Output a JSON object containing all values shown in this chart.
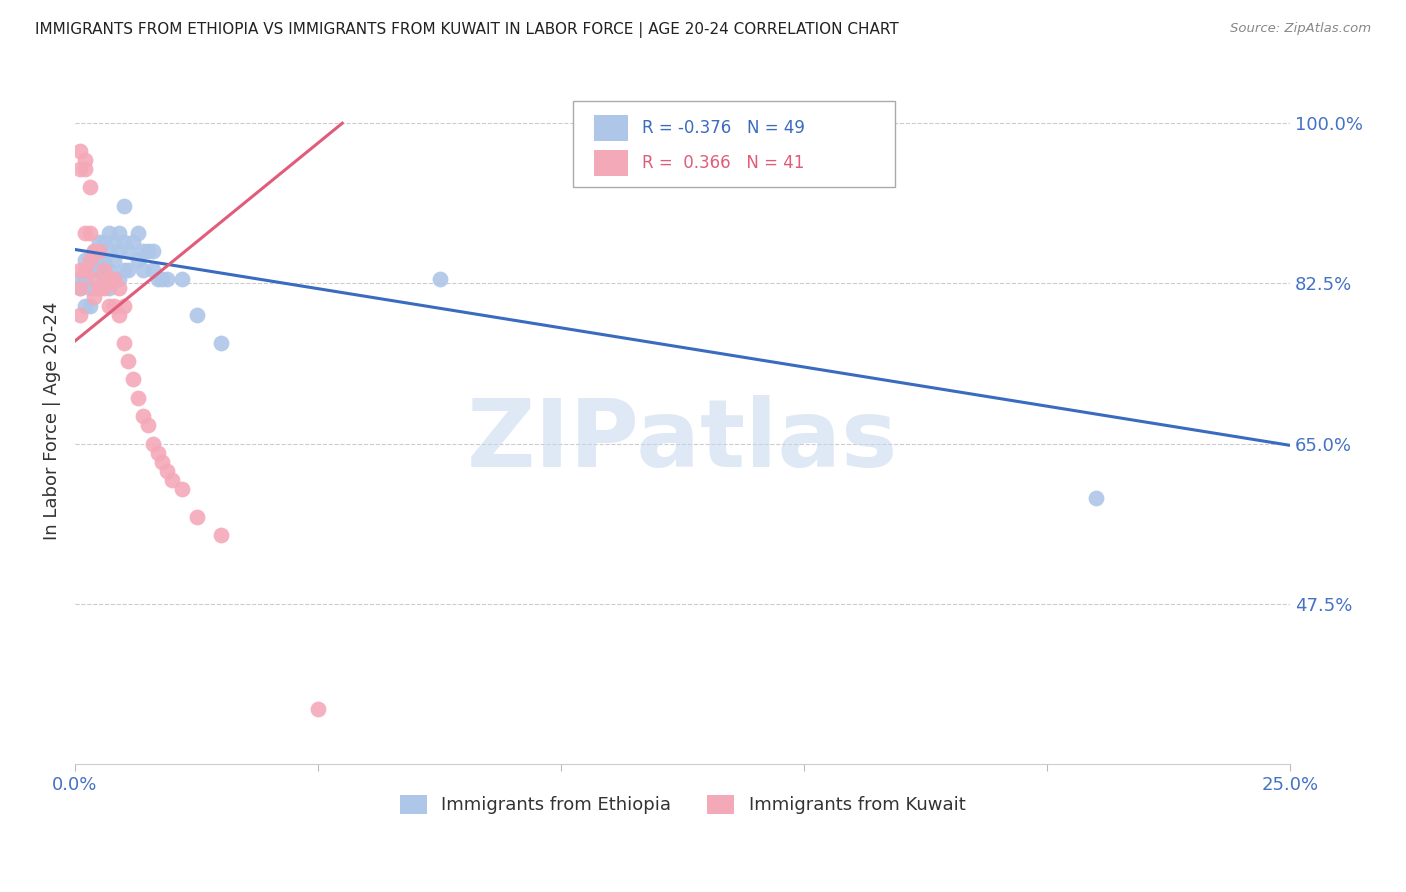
{
  "title": "IMMIGRANTS FROM ETHIOPIA VS IMMIGRANTS FROM KUWAIT IN LABOR FORCE | AGE 20-24 CORRELATION CHART",
  "source": "Source: ZipAtlas.com",
  "ylabel": "In Labor Force | Age 20-24",
  "xlim": [
    0.0,
    0.25
  ],
  "ylim": [
    0.3,
    1.05
  ],
  "xticks": [
    0.0,
    0.05,
    0.1,
    0.15,
    0.2,
    0.25
  ],
  "yticks_right": [
    1.0,
    0.825,
    0.65,
    0.475
  ],
  "yticklabels_right": [
    "100.0%",
    "82.5%",
    "65.0%",
    "47.5%"
  ],
  "ethiopia_color": "#aec6e8",
  "kuwait_color": "#f4a9b8",
  "ethiopia_line_color": "#3a6bbf",
  "kuwait_line_color": "#e05c7a",
  "ethiopia_R": -0.376,
  "ethiopia_N": 49,
  "kuwait_R": 0.366,
  "kuwait_N": 41,
  "watermark": "ZIPatlas",
  "watermark_color": "#c5d8f0",
  "grid_color": "#cccccc",
  "title_color": "#222222",
  "right_axis_color": "#4472c4",
  "ethiopia_scatter_x": [
    0.001,
    0.001,
    0.002,
    0.002,
    0.002,
    0.003,
    0.003,
    0.003,
    0.004,
    0.004,
    0.004,
    0.005,
    0.005,
    0.005,
    0.005,
    0.006,
    0.006,
    0.006,
    0.007,
    0.007,
    0.007,
    0.007,
    0.008,
    0.008,
    0.008,
    0.009,
    0.009,
    0.009,
    0.01,
    0.01,
    0.01,
    0.011,
    0.011,
    0.012,
    0.013,
    0.013,
    0.014,
    0.014,
    0.015,
    0.016,
    0.016,
    0.017,
    0.018,
    0.019,
    0.022,
    0.025,
    0.03,
    0.075,
    0.21
  ],
  "ethiopia_scatter_y": [
    0.83,
    0.82,
    0.85,
    0.83,
    0.8,
    0.84,
    0.82,
    0.8,
    0.86,
    0.84,
    0.82,
    0.87,
    0.85,
    0.84,
    0.82,
    0.87,
    0.85,
    0.83,
    0.88,
    0.86,
    0.84,
    0.82,
    0.87,
    0.85,
    0.83,
    0.88,
    0.86,
    0.83,
    0.91,
    0.87,
    0.84,
    0.86,
    0.84,
    0.87,
    0.88,
    0.85,
    0.86,
    0.84,
    0.86,
    0.86,
    0.84,
    0.83,
    0.83,
    0.83,
    0.83,
    0.79,
    0.76,
    0.83,
    0.59
  ],
  "kuwait_scatter_x": [
    0.001,
    0.001,
    0.001,
    0.001,
    0.001,
    0.002,
    0.002,
    0.002,
    0.002,
    0.003,
    0.003,
    0.003,
    0.004,
    0.004,
    0.004,
    0.005,
    0.005,
    0.006,
    0.006,
    0.007,
    0.007,
    0.008,
    0.008,
    0.009,
    0.009,
    0.01,
    0.01,
    0.011,
    0.012,
    0.013,
    0.014,
    0.015,
    0.016,
    0.017,
    0.018,
    0.019,
    0.02,
    0.022,
    0.025,
    0.03,
    0.05
  ],
  "kuwait_scatter_y": [
    0.97,
    0.95,
    0.84,
    0.82,
    0.79,
    0.96,
    0.95,
    0.88,
    0.84,
    0.93,
    0.88,
    0.85,
    0.86,
    0.83,
    0.81,
    0.86,
    0.82,
    0.84,
    0.82,
    0.83,
    0.8,
    0.83,
    0.8,
    0.82,
    0.79,
    0.8,
    0.76,
    0.74,
    0.72,
    0.7,
    0.68,
    0.67,
    0.65,
    0.64,
    0.63,
    0.62,
    0.61,
    0.6,
    0.57,
    0.55,
    0.36
  ],
  "ethiopia_trend_x": [
    0.0,
    0.25
  ],
  "ethiopia_trend_y": [
    0.862,
    0.648
  ],
  "kuwait_trend_x": [
    0.0,
    0.055
  ],
  "kuwait_trend_y": [
    0.762,
    1.0
  ],
  "legend_text1": "R = -0.376   N = 49",
  "legend_text2": "R =  0.366   N = 41",
  "legend_label_ethiopia": "Immigrants from Ethiopia",
  "legend_label_kuwait": "Immigrants from Kuwait"
}
